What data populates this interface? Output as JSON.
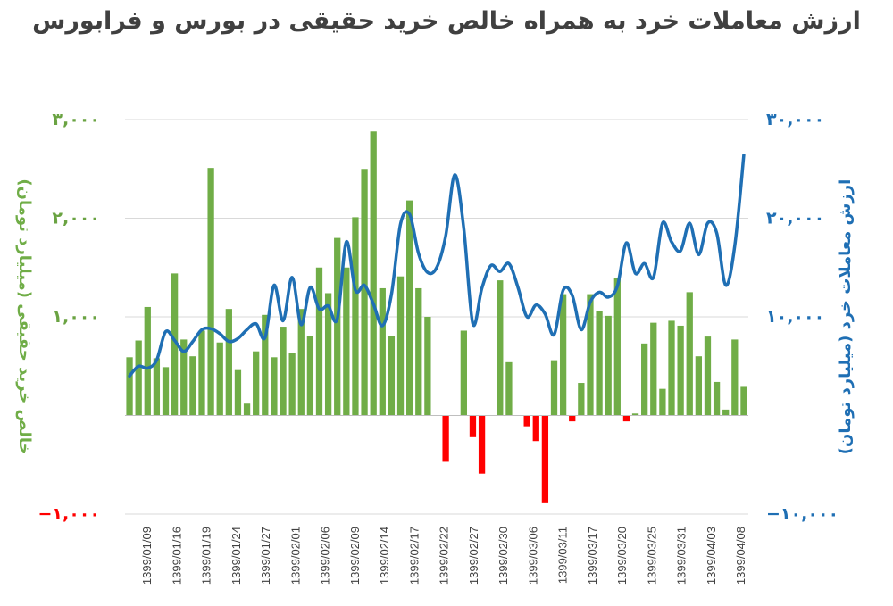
{
  "chart_data": {
    "type": "bar+line",
    "title": "ارزش معاملات خرد به همراه خالص خرید حقیقی در بورس و فرابورس",
    "left_axis": {
      "label": "خالص خرید حقیقی (میلیارد تومان)",
      "range": [
        -1000,
        3000
      ],
      "ticks": [
        {
          "value": 3000,
          "label": "۳,۰۰۰",
          "color": "#6aa342"
        },
        {
          "value": 2000,
          "label": "۲,۰۰۰",
          "color": "#6aa342"
        },
        {
          "value": 1000,
          "label": "۱,۰۰۰",
          "color": "#6aa342"
        },
        {
          "value": -1000,
          "label": "−۱,۰۰۰",
          "color": "#ff0000"
        }
      ]
    },
    "right_axis": {
      "label": "ارزش معاملات خرد (میلیارد تومان)",
      "range": [
        -10000,
        30000
      ],
      "ticks": [
        {
          "value": 30000,
          "label": "۳۰,۰۰۰"
        },
        {
          "value": 20000,
          "label": "۲۰,۰۰۰"
        },
        {
          "value": 10000,
          "label": "۱۰,۰۰۰"
        },
        {
          "value": -10000,
          "label": "−۱۰,۰۰۰"
        }
      ]
    },
    "x_tick_labels": [
      "1399/01/09",
      "1399/01/16",
      "1399/01/19",
      "1399/01/24",
      "1399/01/27",
      "1399/02/01",
      "1399/02/06",
      "1399/02/09",
      "1399/02/14",
      "1399/02/17",
      "1399/02/22",
      "1399/02/27",
      "1399/02/30",
      "1399/03/06",
      "1399/03/11",
      "1399/03/17",
      "1399/03/20",
      "1399/03/25",
      "1399/03/31",
      "1399/04/03",
      "1399/04/08"
    ],
    "colors": {
      "positive": "#70ad47",
      "negative": "#ff0000",
      "line": "#1f6fb4"
    },
    "bars": [
      590,
      760,
      1100,
      580,
      490,
      1440,
      770,
      600,
      860,
      2510,
      740,
      1080,
      460,
      120,
      650,
      1020,
      590,
      900,
      630,
      1080,
      810,
      1500,
      1240,
      1800,
      1500,
      2010,
      2500,
      2880,
      1290,
      810,
      1410,
      2180,
      1290,
      1000,
      0,
      -470,
      0,
      860,
      -220,
      -590,
      0,
      1370,
      540,
      0,
      -110,
      -260,
      -890,
      560,
      1230,
      -60,
      330,
      1230,
      1060,
      1010,
      1390,
      -60,
      20,
      730,
      940,
      270,
      960,
      910,
      1250,
      600,
      800,
      340,
      60,
      770,
      290
    ],
    "line": [
      4000,
      5000,
      4800,
      5600,
      8500,
      7600,
      6500,
      7500,
      8700,
      8800,
      8300,
      7500,
      7800,
      8700,
      9300,
      7900,
      13200,
      9600,
      14000,
      9200,
      13000,
      10800,
      11100,
      9800,
      17600,
      12700,
      13200,
      11300,
      9100,
      12300,
      19400,
      20400,
      16400,
      14500,
      15000,
      18200,
      24400,
      19000,
      9300,
      12900,
      15200,
      14600,
      15400,
      13000,
      10000,
      11200,
      10300,
      8200,
      12700,
      12200,
      8700,
      11500,
      12500,
      12000,
      13100,
      17500,
      14400,
      15400,
      14000,
      19500,
      17600,
      16700,
      19500,
      16300,
      19500,
      18500,
      13200,
      17200,
      26400
    ]
  }
}
